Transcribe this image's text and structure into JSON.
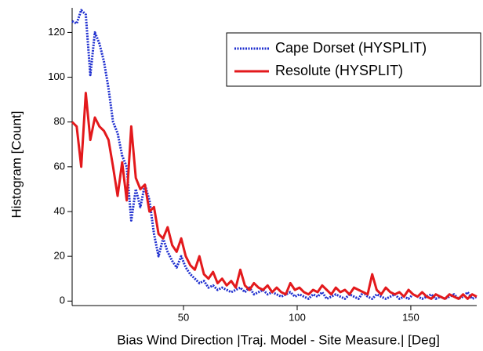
{
  "chart_data": {
    "type": "line",
    "xlabel": "Bias Wind Direction |Traj. Model - Site Measure.| [Deg]",
    "ylabel": "Histogram [Count]",
    "x": [
      1,
      3,
      5,
      7,
      9,
      11,
      13,
      15,
      17,
      19,
      21,
      23,
      25,
      27,
      29,
      31,
      33,
      35,
      37,
      39,
      41,
      43,
      45,
      47,
      49,
      51,
      53,
      55,
      57,
      59,
      61,
      63,
      65,
      67,
      69,
      71,
      73,
      75,
      77,
      79,
      81,
      83,
      85,
      87,
      89,
      91,
      93,
      95,
      97,
      99,
      101,
      103,
      105,
      107,
      109,
      111,
      113,
      115,
      117,
      119,
      121,
      123,
      125,
      127,
      129,
      131,
      133,
      135,
      137,
      139,
      141,
      143,
      145,
      147,
      149,
      151,
      153,
      155,
      157,
      159,
      161,
      163,
      165,
      167,
      169,
      171,
      173,
      175,
      177,
      179
    ],
    "series": [
      {
        "name": "Cape Dorset (HYSPLIT)",
        "color": "#1f2fcf",
        "dashed": true,
        "values": [
          125,
          124,
          130,
          128,
          101,
          120,
          115,
          107,
          95,
          80,
          75,
          65,
          60,
          36,
          50,
          42,
          52,
          45,
          30,
          20,
          28,
          22,
          18,
          15,
          20,
          15,
          12,
          10,
          8,
          9,
          6,
          7,
          5,
          6,
          5,
          4,
          5,
          6,
          4,
          6,
          3,
          4,
          5,
          3,
          4,
          3,
          2,
          3,
          4,
          2,
          3,
          2,
          1,
          3,
          2,
          4,
          1,
          2,
          3,
          2,
          1,
          3,
          2,
          1,
          4,
          2,
          1,
          3,
          2,
          1,
          2,
          3,
          1,
          2,
          1,
          3,
          2,
          1,
          2,
          3,
          1,
          2,
          1,
          2,
          3,
          1,
          2,
          4,
          1,
          2
        ]
      },
      {
        "name": "Resolute (HYSPLIT)",
        "color": "#e3191c",
        "dashed": false,
        "values": [
          80,
          78,
          60,
          93,
          72,
          82,
          78,
          76,
          72,
          60,
          47,
          62,
          45,
          78,
          55,
          50,
          52,
          40,
          42,
          30,
          28,
          33,
          25,
          22,
          28,
          20,
          16,
          14,
          20,
          12,
          10,
          13,
          8,
          10,
          7,
          9,
          6,
          14,
          7,
          5,
          8,
          6,
          5,
          7,
          4,
          6,
          4,
          3,
          8,
          5,
          6,
          4,
          3,
          5,
          4,
          7,
          5,
          3,
          6,
          4,
          5,
          3,
          6,
          5,
          4,
          3,
          12,
          5,
          3,
          6,
          4,
          3,
          4,
          2,
          5,
          3,
          2,
          4,
          2,
          1,
          3,
          2,
          1,
          3,
          2,
          1,
          3,
          1,
          3,
          2
        ]
      }
    ],
    "xlim": [
      1,
      179
    ],
    "ylim": [
      -2,
      131
    ],
    "xticks": [
      50,
      100,
      150
    ],
    "yticks": [
      0,
      20,
      40,
      60,
      80,
      100,
      120
    ],
    "legend": "upper right"
  }
}
